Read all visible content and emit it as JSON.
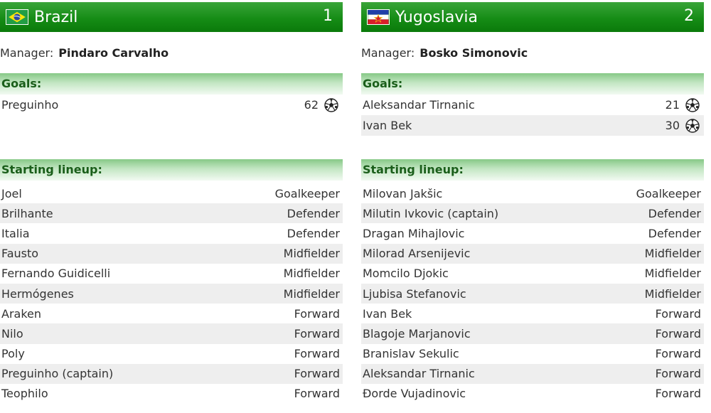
{
  "teams": [
    {
      "name": "Brazil",
      "score": "1",
      "flag_icon": "brazil-flag-icon",
      "manager_label": "Manager:",
      "manager_name": "Pindaro Carvalho",
      "goals_label": "Goals:",
      "goals": [
        {
          "player": "Preguinho",
          "minute": "62"
        }
      ],
      "lineup_label": "Starting lineup:",
      "lineup": [
        {
          "player": "Joel",
          "position": "Goalkeeper"
        },
        {
          "player": "Brilhante",
          "position": "Defender"
        },
        {
          "player": "Italia",
          "position": "Defender"
        },
        {
          "player": "Fausto",
          "position": "Midfielder"
        },
        {
          "player": "Fernando Guidicelli",
          "position": "Midfielder"
        },
        {
          "player": "Hermógenes",
          "position": "Midfielder"
        },
        {
          "player": "Araken",
          "position": "Forward"
        },
        {
          "player": "Nilo",
          "position": "Forward"
        },
        {
          "player": "Poly",
          "position": "Forward"
        },
        {
          "player": "Preguinho (captain)",
          "position": "Forward"
        },
        {
          "player": "Teophilo",
          "position": "Forward"
        }
      ]
    },
    {
      "name": "Yugoslavia",
      "score": "2",
      "flag_icon": "yugoslavia-flag-icon",
      "manager_label": "Manager:",
      "manager_name": "Bosko Simonovic",
      "goals_label": "Goals:",
      "goals": [
        {
          "player": "Aleksandar Tirnanic",
          "minute": "21"
        },
        {
          "player": "Ivan Bek",
          "minute": "30"
        }
      ],
      "lineup_label": "Starting lineup:",
      "lineup": [
        {
          "player": "Milovan Jakšic",
          "position": "Goalkeeper"
        },
        {
          "player": "Milutin Ivkovic (captain)",
          "position": "Defender"
        },
        {
          "player": "Dragan Mihajlovic",
          "position": "Defender"
        },
        {
          "player": "Milorad Arsenijevic",
          "position": "Midfielder"
        },
        {
          "player": "Momcilo Djokic",
          "position": "Midfielder"
        },
        {
          "player": "Ljubisa Stefanovic",
          "position": "Midfielder"
        },
        {
          "player": "Ivan Bek",
          "position": "Forward"
        },
        {
          "player": "Blagoje Marjanovic",
          "position": "Forward"
        },
        {
          "player": "Branislav Sekulic",
          "position": "Forward"
        },
        {
          "player": "Aleksandar Tirnanic",
          "position": "Forward"
        },
        {
          "player": "Đorde Vujadinovic",
          "position": "Forward"
        }
      ]
    }
  ],
  "colors": {
    "header_green": "#168c16",
    "section_text": "#1a5e1a",
    "row_alt": "#eeeeee"
  }
}
